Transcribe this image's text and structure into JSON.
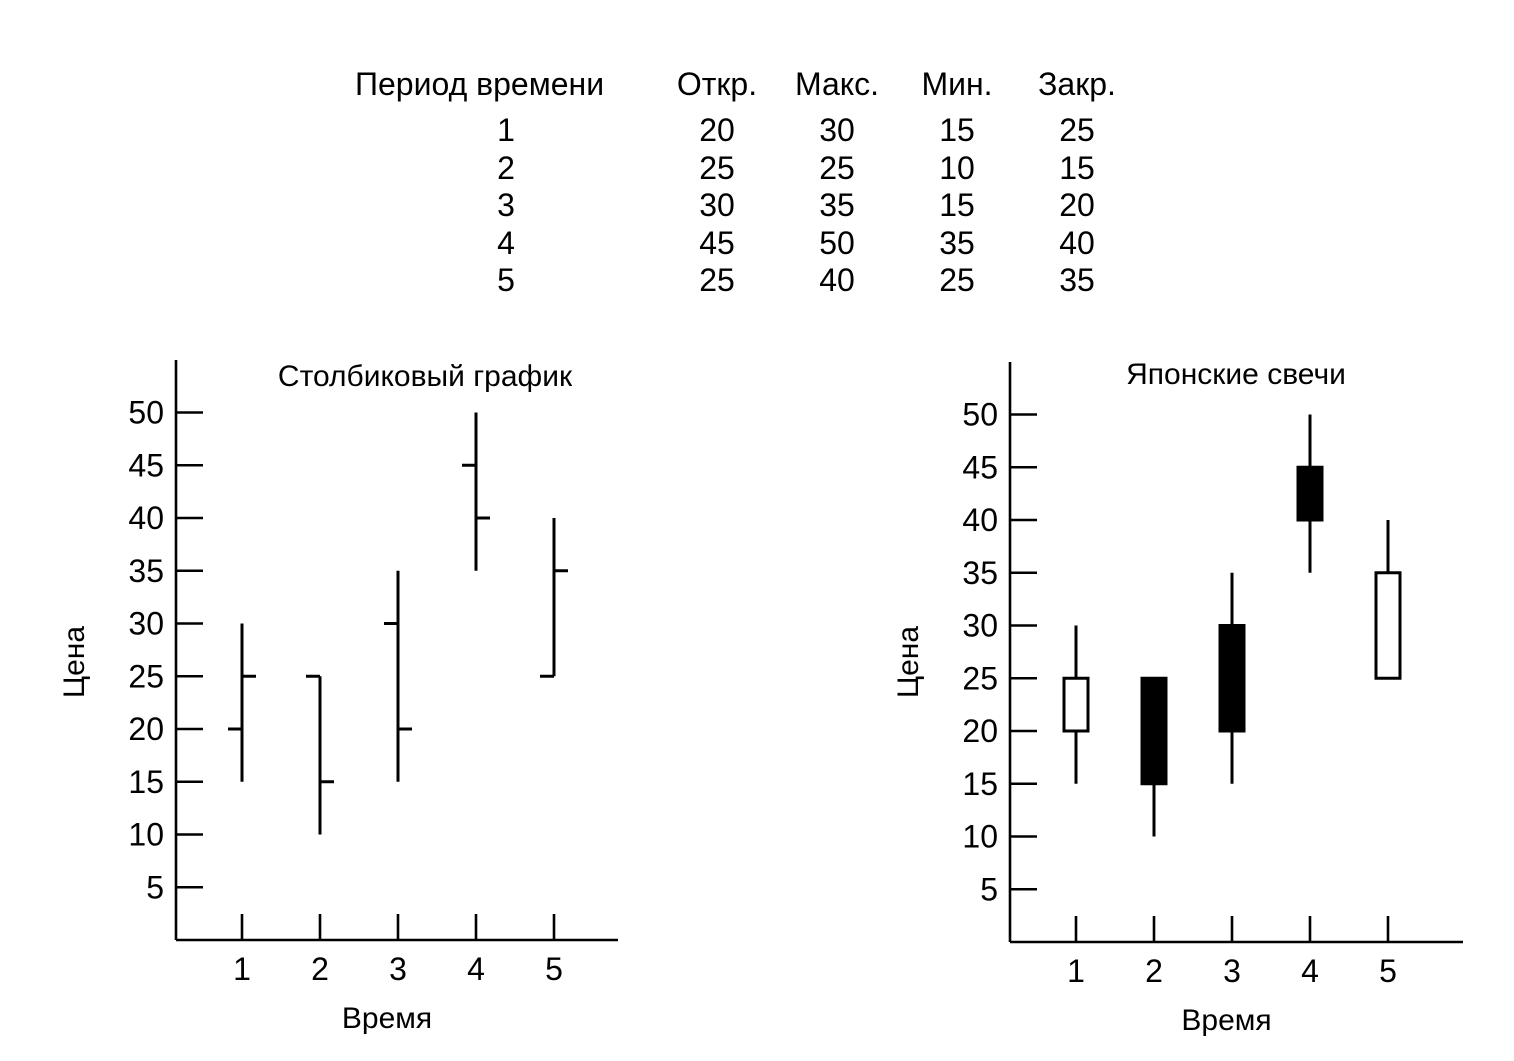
{
  "table": {
    "headers": [
      "Период времени",
      "Откр.",
      "Макс.",
      "Мин.",
      "Закр."
    ],
    "rows": [
      [
        "1",
        "20",
        "30",
        "15",
        "25"
      ],
      [
        "2",
        "25",
        "25",
        "10",
        "15"
      ],
      [
        "3",
        "30",
        "35",
        "15",
        "20"
      ],
      [
        "4",
        "45",
        "50",
        "35",
        "40"
      ],
      [
        "5",
        "25",
        "40",
        "25",
        "35"
      ]
    ]
  },
  "chart_data": [
    {
      "type": "ohlc-bar",
      "title": "Столбиковый график",
      "xlabel": "Время",
      "ylabel": "Цена",
      "categories": [
        "1",
        "2",
        "3",
        "4",
        "5"
      ],
      "yticks": [
        5,
        10,
        15,
        20,
        25,
        30,
        35,
        40,
        45,
        50
      ],
      "ylim": [
        0,
        55
      ],
      "open": [
        20,
        25,
        30,
        45,
        25
      ],
      "high": [
        30,
        25,
        35,
        50,
        40
      ],
      "low": [
        15,
        10,
        15,
        35,
        25
      ],
      "close": [
        25,
        15,
        20,
        40,
        35
      ]
    },
    {
      "type": "candlestick",
      "title": "Японские свечи",
      "xlabel": "Время",
      "ylabel": "Цена",
      "categories": [
        "1",
        "2",
        "3",
        "4",
        "5"
      ],
      "yticks": [
        5,
        10,
        15,
        20,
        25,
        30,
        35,
        40,
        45,
        50
      ],
      "ylim": [
        0,
        55
      ],
      "open": [
        20,
        25,
        30,
        45,
        25
      ],
      "high": [
        30,
        25,
        35,
        50,
        40
      ],
      "low": [
        15,
        10,
        15,
        35,
        25
      ],
      "close": [
        25,
        15,
        20,
        40,
        35
      ],
      "up_color": "#ffffff",
      "down_color": "#000000"
    }
  ]
}
